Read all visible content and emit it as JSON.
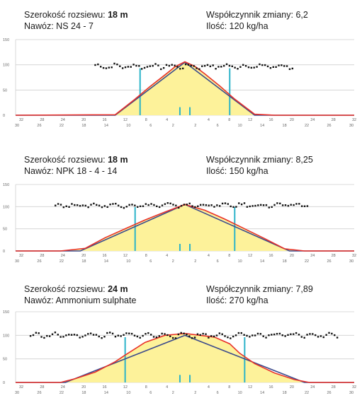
{
  "colors": {
    "fill": "#fdf29a",
    "actual": "#e8312a",
    "theoretical": "#3b4a8c",
    "markers": "#2bb3c9",
    "points": "#111111",
    "grid": "#cfcfcf"
  },
  "chart_data": [
    {
      "type": "area",
      "header": {
        "width_label": "Szerokość rozsiewu:",
        "width_value": "18 m",
        "fert_label": "Nawóz:",
        "fert_value": "NS 24 - 7",
        "cv_label": "Współczynnik zmiany:",
        "cv_value": "6,2",
        "qty_label": "Ilość:",
        "qty_value": "120 kg/ha"
      },
      "ylim": [
        0,
        150
      ],
      "yticks": [
        0,
        50,
        100,
        150
      ],
      "xlim": [
        -34,
        34
      ],
      "xticks_top": [
        "32",
        "28",
        "24",
        "20",
        "16",
        "12",
        "8",
        "4",
        "",
        "4",
        "8",
        "12",
        "16",
        "20",
        "24",
        "28",
        "32"
      ],
      "xticks_bottom": [
        "30",
        "26",
        "22",
        "18",
        "14",
        "10",
        "6",
        "2",
        "2",
        "6",
        "10",
        "14",
        "18",
        "22",
        "26",
        "30"
      ],
      "theoretical": [
        [
          -34,
          0
        ],
        [
          -14,
          0
        ],
        [
          0,
          105
        ],
        [
          14,
          0
        ],
        [
          34,
          0
        ]
      ],
      "actual": [
        [
          -34,
          0
        ],
        [
          -14,
          1
        ],
        [
          -10,
          32
        ],
        [
          -7,
          57
        ],
        [
          -4,
          80
        ],
        [
          -2,
          96
        ],
        [
          0,
          106
        ],
        [
          2,
          97
        ],
        [
          4,
          82
        ],
        [
          7,
          58
        ],
        [
          10,
          32
        ],
        [
          14,
          2
        ],
        [
          18,
          0
        ],
        [
          34,
          0
        ]
      ],
      "markers": [
        -9,
        9
      ],
      "center_bars": [
        -1,
        1
      ],
      "scatter": {
        "from": -18,
        "to": 22,
        "mean": 97,
        "amp": 6,
        "dy": 0
      }
    },
    {
      "type": "area",
      "header": {
        "width_label": "Szerokość rozsiewu:",
        "width_value": "18 m",
        "fert_label": "Nawóz:",
        "fert_value": "NPK 18 - 4 - 14",
        "cv_label": "Współczynnik zmiany:",
        "cv_value": "8,25",
        "qty_label": "Ilość:",
        "qty_value": "150 kg/ha"
      },
      "ylim": [
        0,
        150
      ],
      "yticks": [
        0,
        50,
        100,
        150
      ],
      "xlim": [
        -34,
        34
      ],
      "xticks_top": [
        "32",
        "28",
        "24",
        "20",
        "16",
        "12",
        "8",
        "4",
        "",
        "4",
        "8",
        "12",
        "16",
        "20",
        "24",
        "28",
        "32"
      ],
      "xticks_bottom": [
        "30",
        "26",
        "22",
        "18",
        "14",
        "10",
        "6",
        "2",
        "2",
        "6",
        "10",
        "14",
        "18",
        "22",
        "26",
        "30"
      ],
      "theoretical": [
        [
          -34,
          0
        ],
        [
          -21,
          0
        ],
        [
          0,
          105
        ],
        [
          21,
          0
        ],
        [
          34,
          0
        ]
      ],
      "actual": [
        [
          -34,
          0
        ],
        [
          -25,
          0
        ],
        [
          -20,
          6
        ],
        [
          -16,
          30
        ],
        [
          -12,
          50
        ],
        [
          -8,
          70
        ],
        [
          -4,
          88
        ],
        [
          0,
          105
        ],
        [
          4,
          92
        ],
        [
          8,
          72
        ],
        [
          12,
          50
        ],
        [
          16,
          28
        ],
        [
          20,
          5
        ],
        [
          24,
          0
        ],
        [
          34,
          0
        ]
      ],
      "markers": [
        -10,
        10
      ],
      "center_bars": [
        -1,
        1
      ],
      "scatter": {
        "from": -26,
        "to": 25,
        "mean": 103,
        "amp": 6,
        "dy": 0
      }
    },
    {
      "type": "area",
      "header": {
        "width_label": "Szerokość rozsiewu:",
        "width_value": "24 m",
        "fert_label": "Nawóz:",
        "fert_value": "Ammonium sulphate",
        "cv_label": "Współczynnik zmiany:",
        "cv_value": "7,89",
        "qty_label": "Ilość:",
        "qty_value": "270 kg/ha"
      },
      "ylim": [
        0,
        150
      ],
      "yticks": [
        0,
        50,
        100,
        150
      ],
      "xlim": [
        -34,
        34
      ],
      "xticks_top": [
        "32",
        "28",
        "24",
        "20",
        "16",
        "12",
        "8",
        "4",
        "",
        "4",
        "8",
        "12",
        "16",
        "20",
        "24",
        "28",
        "32"
      ],
      "xticks_bottom": [
        "30",
        "26",
        "22",
        "18",
        "14",
        "10",
        "6",
        "2",
        "2",
        "6",
        "10",
        "14",
        "18",
        "22",
        "26",
        "30"
      ],
      "theoretical": [
        [
          -34,
          0
        ],
        [
          -24,
          0
        ],
        [
          0,
          100
        ],
        [
          24,
          0
        ],
        [
          34,
          0
        ]
      ],
      "actual": [
        [
          -34,
          0
        ],
        [
          -25,
          0
        ],
        [
          -22,
          8
        ],
        [
          -18,
          22
        ],
        [
          -14,
          44
        ],
        [
          -12,
          58
        ],
        [
          -8,
          85
        ],
        [
          -4,
          100
        ],
        [
          -2,
          102
        ],
        [
          0,
          104
        ],
        [
          3,
          100
        ],
        [
          6,
          96
        ],
        [
          9,
          82
        ],
        [
          11,
          62
        ],
        [
          14,
          40
        ],
        [
          18,
          20
        ],
        [
          22,
          6
        ],
        [
          25,
          0
        ],
        [
          34,
          0
        ]
      ],
      "markers": [
        -12,
        12
      ],
      "center_bars": [
        -1,
        1
      ],
      "scatter": {
        "from": -31,
        "to": 31,
        "mean": 100,
        "amp": 6,
        "dy": 0
      }
    }
  ]
}
